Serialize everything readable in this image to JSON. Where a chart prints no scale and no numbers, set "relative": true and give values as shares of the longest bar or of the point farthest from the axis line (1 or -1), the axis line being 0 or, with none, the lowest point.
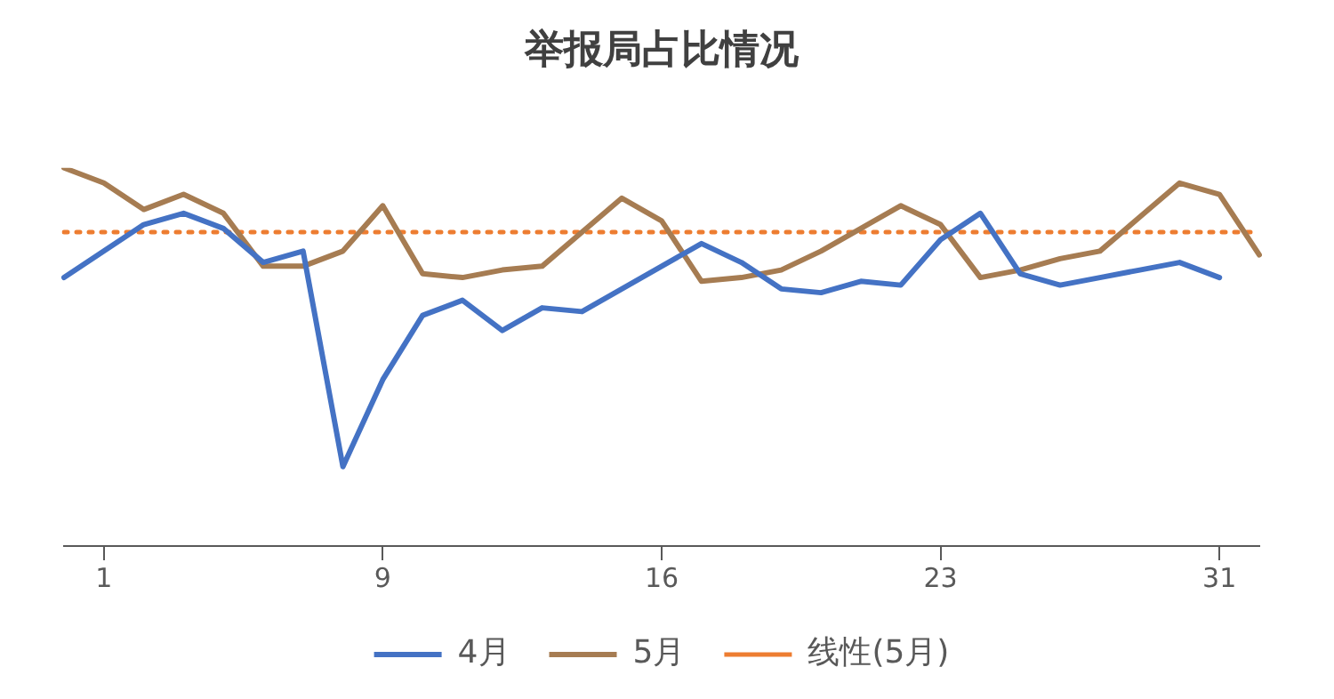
{
  "chart_data": {
    "type": "line",
    "title": "举报局占比情况",
    "relative": true,
    "categories": [
      null,
      "1",
      null,
      null,
      null,
      null,
      null,
      null,
      "9",
      null,
      null,
      null,
      null,
      null,
      null,
      "16",
      null,
      null,
      null,
      null,
      null,
      null,
      "23",
      null,
      null,
      null,
      null,
      null,
      null,
      "31",
      null
    ],
    "series": [
      {
        "name": "4月",
        "color": "#4472c4",
        "values": [
          0.71,
          0.78,
          0.85,
          0.88,
          0.84,
          0.75,
          0.78,
          0.21,
          0.44,
          0.61,
          0.65,
          0.57,
          0.63,
          0.62,
          0.68,
          0.74,
          0.8,
          0.75,
          0.68,
          0.67,
          0.7,
          0.69,
          0.81,
          0.88,
          0.72,
          0.69,
          0.71,
          0.73,
          0.75,
          0.71,
          null
        ]
      },
      {
        "name": "5月",
        "color": "#a67c52",
        "values": [
          1.0,
          0.96,
          0.89,
          0.93,
          0.88,
          0.74,
          0.74,
          0.78,
          0.9,
          0.72,
          0.71,
          0.73,
          0.74,
          0.83,
          0.92,
          0.86,
          0.7,
          0.71,
          0.73,
          0.78,
          0.84,
          0.9,
          0.85,
          0.71,
          0.73,
          0.76,
          0.78,
          0.87,
          0.96,
          0.93,
          0.77
        ]
      },
      {
        "name": "线性(5月)",
        "color": "#ed7d31",
        "line_style": "dotted",
        "values": [
          0.83,
          0.83,
          0.83,
          0.83,
          0.83,
          0.83,
          0.83,
          0.83,
          0.83,
          0.83,
          0.83,
          0.83,
          0.83,
          0.83,
          0.83,
          0.83,
          0.83,
          0.83,
          0.83,
          0.83,
          0.83,
          0.83,
          0.83,
          0.83,
          0.83,
          0.83,
          0.83,
          0.83,
          0.83,
          0.83,
          0.83
        ]
      }
    ],
    "legend": "bottom",
    "marker": "none",
    "grid": false
  }
}
